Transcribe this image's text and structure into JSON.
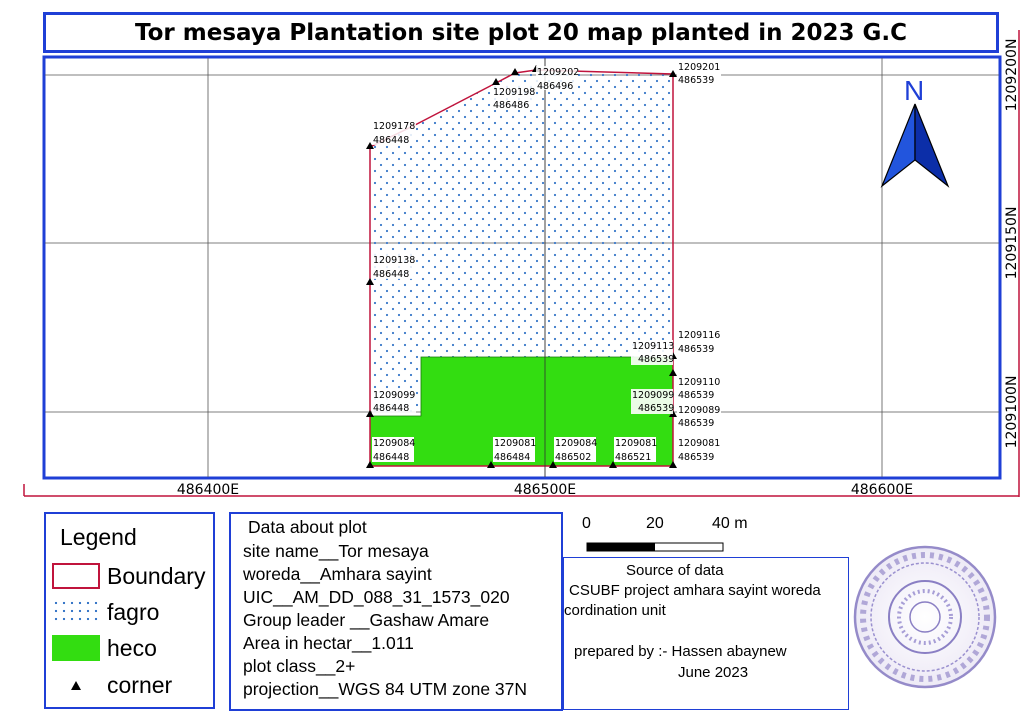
{
  "title": "Tor mesaya Plantation site plot 20 map planted in 2023 G.C",
  "map": {
    "north_label": "N",
    "easting_labels": [
      "486400E",
      "486500E",
      "486600E"
    ],
    "northing_labels": [
      "1209100N",
      "1209150N",
      "1209200N"
    ],
    "corner_labels": [
      {
        "n": "1209202",
        "e": "486496"
      },
      {
        "n": "1209201",
        "e": "486539"
      },
      {
        "n": "1209198",
        "e": "486486"
      },
      {
        "n": "1209178",
        "e": "486448"
      },
      {
        "n": "1209138",
        "e": "486448"
      },
      {
        "n": "1209116",
        "e": "486539"
      },
      {
        "n": "1209113",
        "e": "486539"
      },
      {
        "n": "1209110",
        "e": "486539"
      },
      {
        "n": "1209099",
        "e": "486448"
      },
      {
        "n": "1209099",
        "e": "486539"
      },
      {
        "n": "1209089",
        "e": "486539"
      },
      {
        "n": "1209084",
        "e": "486448"
      },
      {
        "n": "1209081",
        "e": "486484"
      },
      {
        "n": "1209084",
        "e": "486502"
      },
      {
        "n": "1209081",
        "e": "486521"
      },
      {
        "n": "1209081",
        "e": "486539"
      }
    ],
    "colors": {
      "boundary": "#c0143c",
      "fagro_dots": "#3a78c8",
      "heco": "#33dd11",
      "frame": "#1f3fd6"
    }
  },
  "legend": {
    "title": "Legend",
    "items": [
      {
        "label": "Boundary",
        "symbol": "boundary"
      },
      {
        "label": "fagro",
        "symbol": "fagro"
      },
      {
        "label": "heco",
        "symbol": "heco"
      },
      {
        "label": "corner",
        "symbol": "corner"
      }
    ]
  },
  "plot_info": {
    "heading": "Data about plot",
    "site_name": "site name__Tor mesaya",
    "woreda": "woreda__Amhara sayint",
    "uic": "UIC__AM_DD_088_31_1573_020",
    "group_leader": "Group leader __Gashaw Amare",
    "area": "Area in hectar__1.011",
    "plot_class": "plot class__2+",
    "projection": "projection__WGS 84 UTM zone 37N"
  },
  "scale_bar": {
    "labels": [
      "0",
      "20",
      "40 m"
    ]
  },
  "source": {
    "heading": "Source of data",
    "line1": "CSUBF project amhara sayint woreda",
    "line2": "cordination unit",
    "prepared": "prepared by :- Hassen abaynew",
    "date": "June 2023"
  },
  "stamp": {
    "text": "Amhara sayint woreda office seal"
  }
}
